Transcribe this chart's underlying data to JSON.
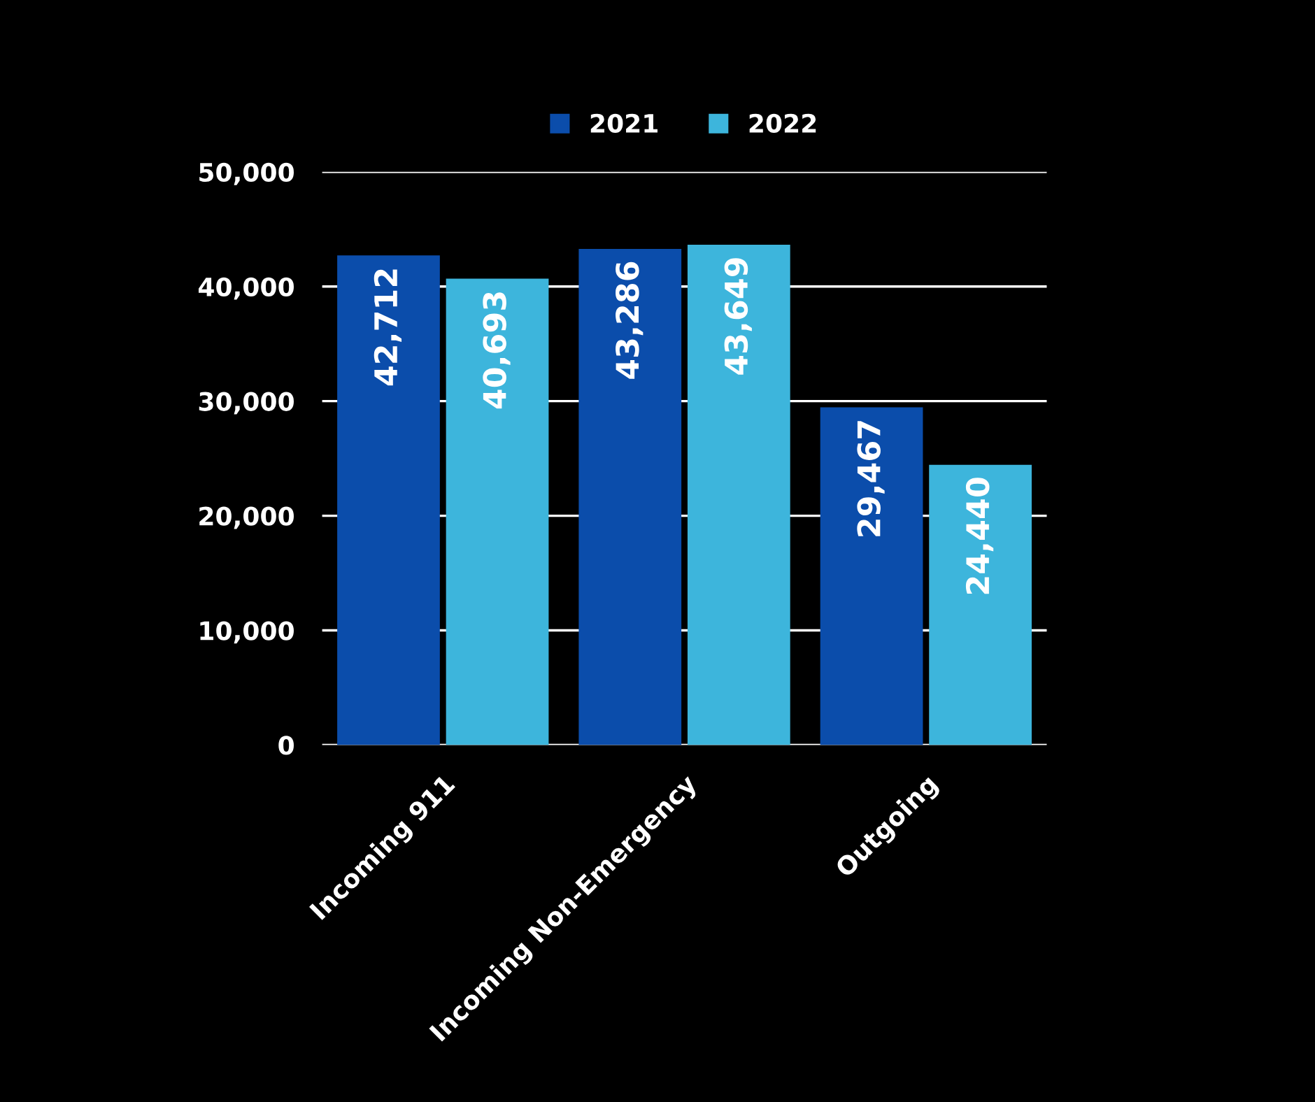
{
  "chart_data": {
    "type": "bar",
    "categories": [
      "Incoming 911",
      "Incoming Non-Emergency",
      "Outgoing"
    ],
    "series": [
      {
        "name": "2021",
        "color": "#0b4dab",
        "values": [
          42712,
          43286,
          29467
        ],
        "value_labels": [
          "42,712",
          "43,286",
          "29,467"
        ]
      },
      {
        "name": "2022",
        "color": "#3db5dc",
        "values": [
          40693,
          43649,
          24440
        ],
        "value_labels": [
          "40,693",
          "43,649",
          "24,440"
        ]
      }
    ],
    "ylim": [
      0,
      50000
    ],
    "yticks": [
      0,
      {
        "value": 10000,
        "label": "10,000"
      },
      {
        "value": 20000,
        "label": "20,000"
      },
      {
        "value": 30000,
        "label": "30,000"
      },
      {
        "value": 40000,
        "label": "40,000"
      },
      {
        "value": 50000,
        "label": "50,000"
      }
    ],
    "grid": "y",
    "legend": "top"
  }
}
